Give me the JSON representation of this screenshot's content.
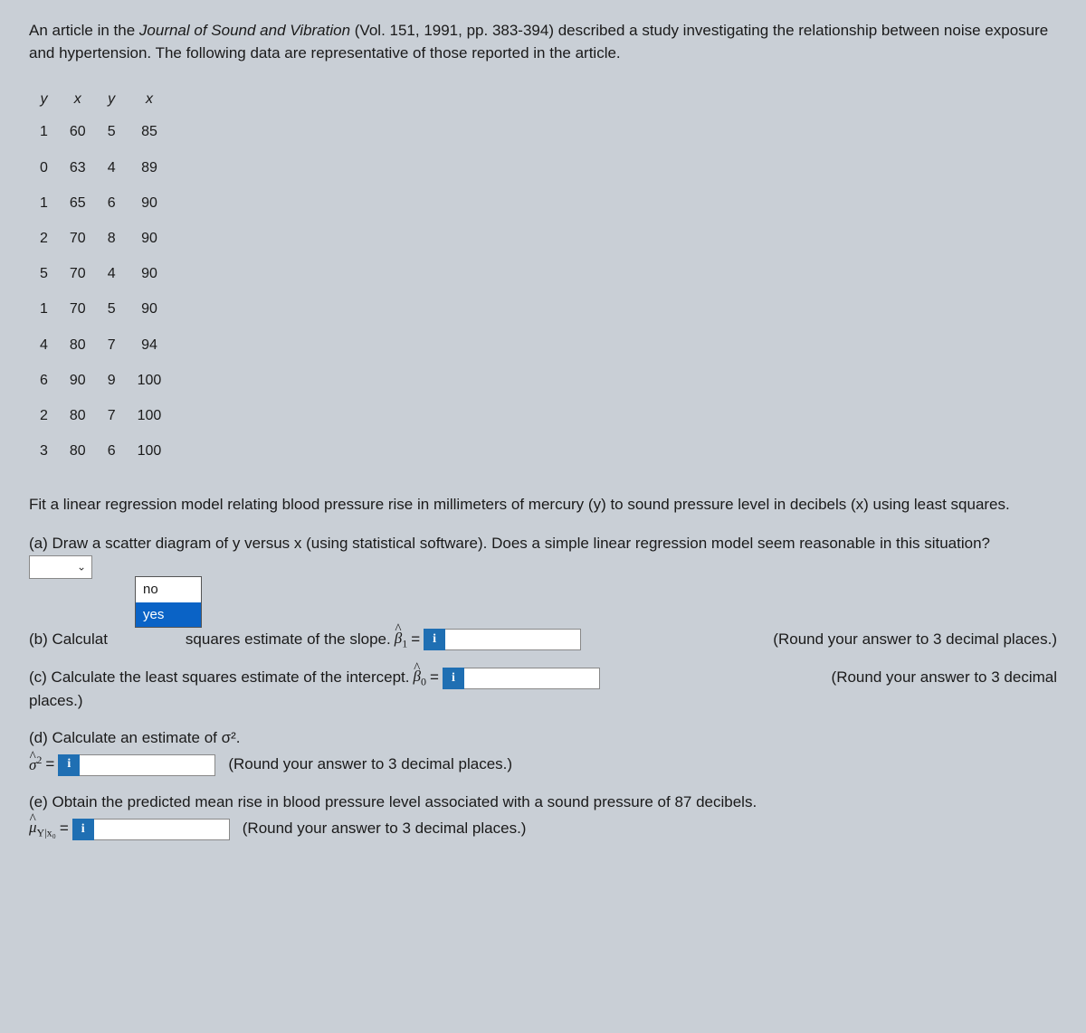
{
  "intro": {
    "pre": "An article in the ",
    "journal": "Journal of Sound and Vibration",
    "post": " (Vol. 151, 1991, pp. 383-394) described a study investigating the relationship between noise exposure and hypertension. The following data are representative of those reported in the article."
  },
  "table": {
    "headers": [
      "y",
      "x",
      "y",
      "x"
    ],
    "rows": [
      [
        "1",
        "60",
        "5",
        "85"
      ],
      [
        "0",
        "63",
        "4",
        "89"
      ],
      [
        "1",
        "65",
        "6",
        "90"
      ],
      [
        "2",
        "70",
        "8",
        "90"
      ],
      [
        "5",
        "70",
        "4",
        "90"
      ],
      [
        "1",
        "70",
        "5",
        "90"
      ],
      [
        "4",
        "80",
        "7",
        "94"
      ],
      [
        "6",
        "90",
        "9",
        "100"
      ],
      [
        "2",
        "80",
        "7",
        "100"
      ],
      [
        "3",
        "80",
        "6",
        "100"
      ]
    ]
  },
  "prompt": "Fit a linear regression model relating blood pressure rise in millimeters of mercury (y) to sound pressure level in decibels (x) using least squares.",
  "parts": {
    "a": {
      "text": "(a) Draw a scatter diagram of y versus x (using statistical software). Does a simple linear regression model seem reasonable in this situation?",
      "options": [
        "no",
        "yes"
      ],
      "selected": "yes"
    },
    "b": {
      "pre": "(b) Calculat",
      "mid": "squares estimate of the slope.",
      "sym_var": "β",
      "sym_sub": "1",
      "round": "(Round your answer to 3 decimal places.)"
    },
    "c": {
      "text": "(c) Calculate the least squares estimate of the intercept.",
      "sym_var": "β",
      "sym_sub": "0",
      "round_pre": "(Round your answer to 3 decimal",
      "round_post": "places.)"
    },
    "d": {
      "text": "(d) Calculate an estimate of σ².",
      "sym_var": "σ",
      "sym_sup": "2",
      "round": "(Round your answer to 3 decimal places.)"
    },
    "e": {
      "text": "(e) Obtain the predicted mean rise in blood pressure level associated with a sound pressure of 87 decibels.",
      "sym_var": "μ",
      "sym_sub": "Y|x₀",
      "round": "(Round your answer to 3 decimal places.)"
    }
  },
  "eq_sign": " = ",
  "info_glyph": "i",
  "colors": {
    "background": "#c9cfd6",
    "info_bg": "#1f6fb3",
    "select_highlight": "#0a63c6"
  }
}
